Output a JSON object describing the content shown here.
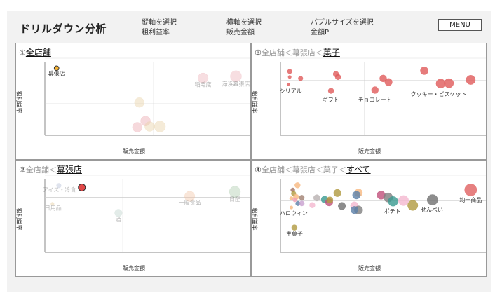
{
  "header": {
    "title": "ドリルダウン分析",
    "selectors": [
      {
        "label": "縦軸を選択",
        "value": "粗利益率"
      },
      {
        "label": "横軸を選択",
        "value": "販売金額"
      },
      {
        "label": "バブルサイズを選択",
        "value": "金額PI"
      }
    ],
    "menu_label": "MENU"
  },
  "chart_data": [
    {
      "type": "scatter",
      "num": "①",
      "path": "",
      "current": "全店舗",
      "xlabel": "販売金額",
      "ylabel": "粗利益率",
      "xlim": [
        0,
        100
      ],
      "ylim": [
        0,
        100
      ],
      "mean_x": 53,
      "mean_y": 43,
      "points": [
        {
          "x": 5.7,
          "y": 92,
          "size": 100,
          "color": "#f5b335",
          "opacity": 1,
          "stroke": true,
          "label": "幕張店"
        },
        {
          "x": 77,
          "y": 78.5,
          "size": 484,
          "color": "#e8a0a8",
          "opacity": 0.35,
          "label": "稲毛店"
        },
        {
          "x": 93,
          "y": 81,
          "size": 576,
          "color": "#e8a0a8",
          "opacity": 0.35,
          "label": "海浜幕張店"
        },
        {
          "x": 46,
          "y": 45,
          "size": 441,
          "color": "#e8d2a8",
          "opacity": 0.45
        },
        {
          "x": 49,
          "y": 19.5,
          "size": 441,
          "color": "#e8a0a8",
          "opacity": 0.4
        },
        {
          "x": 45,
          "y": 11,
          "size": 441,
          "color": "#e8a0a8",
          "opacity": 0.4
        },
        {
          "x": 51,
          "y": 12,
          "size": 441,
          "color": "#e8d2a8",
          "opacity": 0.45
        },
        {
          "x": 56,
          "y": 12,
          "size": 576,
          "color": "#e8d2a8",
          "opacity": 0.45
        }
      ],
      "labels": [
        {
          "text": "幕張店",
          "x": 5.7,
          "y": 82,
          "opacity": 1
        },
        {
          "text": "稲毛店",
          "x": 77,
          "y": 67,
          "opacity": 0.4
        },
        {
          "text": "海浜幕張店",
          "x": 93,
          "y": 68,
          "opacity": 0.4
        }
      ]
    },
    {
      "type": "scatter",
      "num": "②",
      "path": "全店舗＜",
      "current": "幕張店",
      "xlabel": "販売金額",
      "ylabel": "粗利益率",
      "xlim": [
        0,
        100
      ],
      "ylim": [
        0,
        100
      ],
      "mean_x": 38,
      "mean_y": 75.3,
      "points": [
        {
          "x": 6.8,
          "y": 91.5,
          "size": 100,
          "color": "#b8c2d8",
          "opacity": 0.45
        },
        {
          "x": 18,
          "y": 89,
          "size": 225,
          "color": "#e04848",
          "opacity": 1,
          "stroke": true
        },
        {
          "x": 3.7,
          "y": 66.5,
          "size": 49,
          "color": "#e8d2a8",
          "opacity": 0.5
        },
        {
          "x": 35.8,
          "y": 54,
          "size": 256,
          "color": "#b8d0c8",
          "opacity": 0.4
        },
        {
          "x": 70.5,
          "y": 76.8,
          "size": 484,
          "color": "#f0c0a0",
          "opacity": 0.4
        },
        {
          "x": 92.5,
          "y": 83,
          "size": 576,
          "color": "#a8c8a8",
          "opacity": 0.4
        }
      ],
      "labels": [
        {
          "text": "アイス・冷食",
          "x": 7,
          "y": 83,
          "opacity": 0.35
        },
        {
          "text": "日用品",
          "x": 4,
          "y": 58,
          "opacity": 0.35
        },
        {
          "text": "酒",
          "x": 35.8,
          "y": 43,
          "opacity": 0.35
        },
        {
          "text": "一般食品",
          "x": 70.5,
          "y": 66,
          "opacity": 0.35
        },
        {
          "text": "日配",
          "x": 92.5,
          "y": 70,
          "opacity": 0.35
        }
      ]
    },
    {
      "type": "scatter",
      "num": "③",
      "path": "全店舗＜幕張店＜",
      "current": "菓子",
      "xlabel": "販売金額",
      "ylabel": "粗利益率",
      "xlim": [
        0,
        100
      ],
      "ylim": [
        0,
        100
      ],
      "mean_x": 41,
      "mean_y": 75,
      "points": [
        {
          "x": 4.5,
          "y": 87.6,
          "size": 100,
          "color": "#e05a5a",
          "opacity": 0.8
        },
        {
          "x": 4.5,
          "y": 80,
          "size": 49,
          "color": "#e05a5a",
          "opacity": 0.8
        },
        {
          "x": 9.8,
          "y": 78,
          "size": 100,
          "color": "#e05a5a",
          "opacity": 0.8
        },
        {
          "x": 3.8,
          "y": 70,
          "size": 36,
          "color": "#e05a5a",
          "opacity": 0.8
        },
        {
          "x": 27,
          "y": 84,
          "size": 144,
          "color": "#e05a5a",
          "opacity": 0.8
        },
        {
          "x": 28,
          "y": 80,
          "size": 144,
          "color": "#e05a5a",
          "opacity": 0.8
        },
        {
          "x": 24.6,
          "y": 61,
          "size": 144,
          "color": "#e05a5a",
          "opacity": 0.8
        },
        {
          "x": 50,
          "y": 78,
          "size": 225,
          "color": "#e05a5a",
          "opacity": 0.8
        },
        {
          "x": 52.6,
          "y": 73,
          "size": 256,
          "color": "#e05a5a",
          "opacity": 0.8
        },
        {
          "x": 46,
          "y": 62,
          "size": 225,
          "color": "#e05a5a",
          "opacity": 0.8
        },
        {
          "x": 70,
          "y": 88.6,
          "size": 289,
          "color": "#e05a5a",
          "opacity": 0.8
        },
        {
          "x": 78,
          "y": 71,
          "size": 400,
          "color": "#e05a5a",
          "opacity": 0.8
        },
        {
          "x": 82,
          "y": 71.5,
          "size": 400,
          "color": "#e05a5a",
          "opacity": 0.8
        },
        {
          "x": 92.6,
          "y": 76,
          "size": 400,
          "color": "#e05a5a",
          "opacity": 0.8
        }
      ],
      "labels": [
        {
          "text": "シリアル",
          "x": 5,
          "y": 58,
          "opacity": 1
        },
        {
          "text": "ギフト",
          "x": 24.5,
          "y": 46,
          "opacity": 1
        },
        {
          "text": "チョコレート",
          "x": 46,
          "y": 46,
          "opacity": 1
        },
        {
          "text": "クッキー・ビスケット",
          "x": 77,
          "y": 54,
          "opacity": 1
        }
      ]
    },
    {
      "type": "scatter",
      "num": "④",
      "path": "全店舗＜幕張店＜菓子＜",
      "current": "すべて",
      "xlabel": "販売金額",
      "ylabel": "粗利益率",
      "xlim": [
        0,
        100
      ],
      "ylim": [
        0,
        100
      ],
      "mean_x": 28.5,
      "mean_y": 71,
      "points": [
        {
          "x": 8.3,
          "y": 92,
          "size": 144,
          "color": "#f8b880",
          "opacity": 0.8
        },
        {
          "x": 6,
          "y": 85.6,
          "size": 81,
          "color": "#a07060",
          "opacity": 0.8
        },
        {
          "x": 6.4,
          "y": 80.8,
          "size": 100,
          "color": "#b09a40",
          "opacity": 0.8
        },
        {
          "x": 7.6,
          "y": 76,
          "size": 144,
          "color": "#f8b880",
          "opacity": 0.8
        },
        {
          "x": 5.3,
          "y": 74,
          "size": 64,
          "color": "#f8b880",
          "opacity": 0.8
        },
        {
          "x": 10.4,
          "y": 75,
          "size": 121,
          "color": "#a08070",
          "opacity": 0.8
        },
        {
          "x": 7,
          "y": 72,
          "size": 81,
          "color": "#f0a0b8",
          "opacity": 0.8
        },
        {
          "x": 8.5,
          "y": 67,
          "size": 100,
          "color": "#5b7fa8",
          "opacity": 0.8
        },
        {
          "x": 10.4,
          "y": 67,
          "size": 121,
          "color": "#c8a0d0",
          "opacity": 0.8
        },
        {
          "x": 5.3,
          "y": 61.5,
          "size": 49,
          "color": "#f8b880",
          "opacity": 0.8
        },
        {
          "x": 6.8,
          "y": 34,
          "size": 144,
          "color": "#b09a40",
          "opacity": 0.8
        },
        {
          "x": 15.5,
          "y": 64.7,
          "size": 144,
          "color": "#f4b8d0",
          "opacity": 0.8
        },
        {
          "x": 17.7,
          "y": 74.7,
          "size": 196,
          "color": "#b8b0b0",
          "opacity": 0.8
        },
        {
          "x": 21.5,
          "y": 72.4,
          "size": 225,
          "color": "#3a9a90",
          "opacity": 0.8
        },
        {
          "x": 23.7,
          "y": 68.6,
          "size": 256,
          "color": "#c0507a",
          "opacity": 0.8
        },
        {
          "x": 24,
          "y": 71.8,
          "size": 196,
          "color": "#b09a40",
          "opacity": 0.8
        },
        {
          "x": 27.7,
          "y": 81.4,
          "size": 256,
          "color": "#b09a40",
          "opacity": 0.8
        },
        {
          "x": 29.9,
          "y": 63.5,
          "size": 256,
          "color": "#707070",
          "opacity": 0.8
        },
        {
          "x": 38,
          "y": 81.7,
          "size": 289,
          "color": "#f8b880",
          "opacity": 0.8
        },
        {
          "x": 37,
          "y": 78.5,
          "size": 289,
          "color": "#5b7fa8",
          "opacity": 0.8
        },
        {
          "x": 36,
          "y": 64,
          "size": 289,
          "color": "#f4b8d0",
          "opacity": 0.8
        },
        {
          "x": 38,
          "y": 58,
          "size": 324,
          "color": "#808080",
          "opacity": 0.8
        },
        {
          "x": 36,
          "y": 58,
          "size": 256,
          "color": "#5b7fa8",
          "opacity": 0.8
        },
        {
          "x": 49,
          "y": 78.5,
          "size": 324,
          "color": "#c0507a",
          "opacity": 0.8
        },
        {
          "x": 52.4,
          "y": 75.3,
          "size": 400,
          "color": "#808080",
          "opacity": 0.8
        },
        {
          "x": 54.8,
          "y": 69.9,
          "size": 441,
          "color": "#3a9a90",
          "opacity": 0.8
        },
        {
          "x": 59.9,
          "y": 71,
          "size": 484,
          "color": "#f4b8d0",
          "opacity": 0.8
        },
        {
          "x": 64.4,
          "y": 64.4,
          "size": 484,
          "color": "#b09a40",
          "opacity": 0.8
        },
        {
          "x": 74,
          "y": 72,
          "size": 529,
          "color": "#707070",
          "opacity": 0.8
        },
        {
          "x": 92.6,
          "y": 85.6,
          "size": 676,
          "color": "#e06060",
          "opacity": 0.8
        }
      ],
      "labels": [
        {
          "text": "ハロウィン",
          "x": 6.5,
          "y": 51,
          "opacity": 1
        },
        {
          "text": "生菓子",
          "x": 6.8,
          "y": 23,
          "opacity": 1
        },
        {
          "text": "ポテト",
          "x": 54.5,
          "y": 54,
          "opacity": 1
        },
        {
          "text": "せんべい",
          "x": 73.7,
          "y": 56,
          "opacity": 1
        },
        {
          "text": "均一商品",
          "x": 92.6,
          "y": 69,
          "opacity": 1
        }
      ]
    }
  ]
}
